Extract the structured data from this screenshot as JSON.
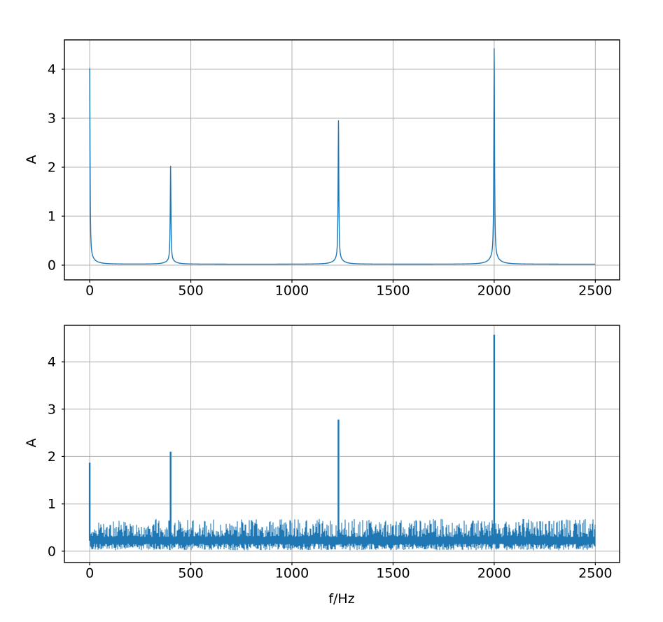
{
  "figure": {
    "background": "#ffffff",
    "line_color": "#1f77b4",
    "grid_color": "#b0b0b0",
    "spine_color": "#000000",
    "text_color": "#000000"
  },
  "chart_data": [
    {
      "type": "line",
      "id": "top-spectrum",
      "description": "Clean amplitude spectrum with four discrete peaks",
      "title": "",
      "xlabel": "",
      "ylabel": "A",
      "x_ticks": [
        0,
        500,
        1000,
        1500,
        2000,
        2500
      ],
      "y_ticks": [
        0,
        1,
        2,
        3,
        4
      ],
      "xlim": [
        -125,
        2620
      ],
      "ylim": [
        -0.3,
        4.6
      ],
      "grid": true,
      "legend_position": "none",
      "f_range_hz": [
        0,
        2500
      ],
      "baseline": 0.02,
      "peaks": [
        {
          "f_hz": 0,
          "amplitude": 4.0
        },
        {
          "f_hz": 400,
          "amplitude": 2.0
        },
        {
          "f_hz": 1230,
          "amplitude": 2.93
        },
        {
          "f_hz": 2000,
          "amplitude": 4.4
        }
      ]
    },
    {
      "type": "line",
      "id": "bottom-spectrum",
      "description": "Noisy amplitude spectrum with the same four peaks above a noise floor",
      "title": "",
      "xlabel": "f/Hz",
      "ylabel": "A",
      "x_ticks": [
        0,
        500,
        1000,
        1500,
        2000,
        2500
      ],
      "y_ticks": [
        0,
        1,
        2,
        3,
        4
      ],
      "xlim": [
        -125,
        2620
      ],
      "ylim": [
        -0.24,
        4.77
      ],
      "grid": true,
      "legend_position": "none",
      "f_range_hz": [
        0,
        2500
      ],
      "noise_floor": {
        "min": 0.02,
        "max": 0.68,
        "mean": 0.3
      },
      "peaks": [
        {
          "f_hz": 0,
          "amplitude": 1.87
        },
        {
          "f_hz": 400,
          "amplitude": 2.1
        },
        {
          "f_hz": 1230,
          "amplitude": 2.78
        },
        {
          "f_hz": 2000,
          "amplitude": 4.57
        }
      ]
    }
  ]
}
